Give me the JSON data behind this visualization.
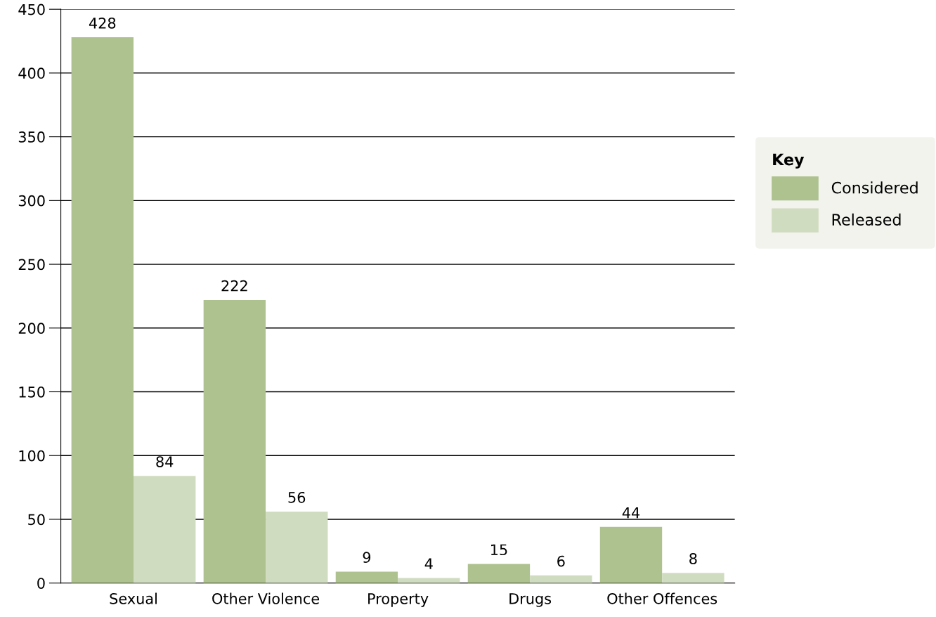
{
  "chart_data": {
    "type": "bar",
    "categories": [
      "Sexual",
      "Other Violence",
      "Property",
      "Drugs",
      "Other Offences"
    ],
    "series": [
      {
        "name": "Considered",
        "color": "#adc28e",
        "values": [
          428,
          222,
          9,
          15,
          44
        ]
      },
      {
        "name": "Released",
        "color": "#d0dcc0",
        "values": [
          84,
          56,
          4,
          6,
          8
        ]
      }
    ],
    "ylim": [
      0,
      450
    ],
    "yticks": [
      0,
      50,
      100,
      150,
      200,
      250,
      300,
      350,
      400,
      450
    ],
    "grid": "y",
    "legend": "right",
    "legend_title": "Key",
    "data_labels": true
  }
}
